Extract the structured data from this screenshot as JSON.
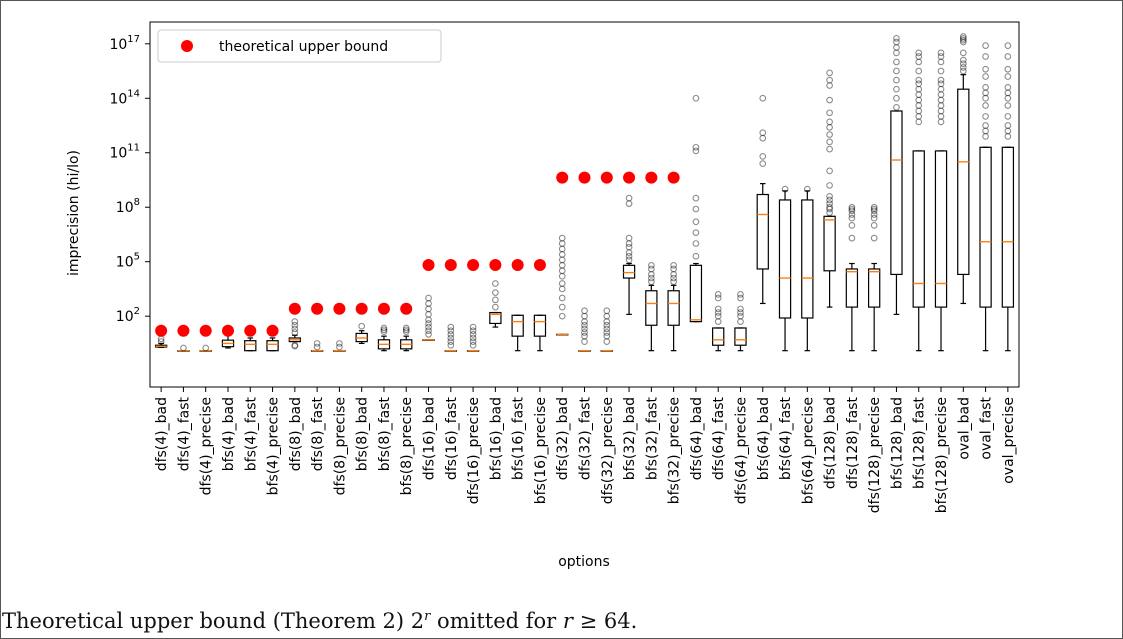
{
  "chart_data": {
    "type": "boxplot",
    "xlabel": "options",
    "ylabel": "imprecision (hi/lo)",
    "yscale": "log",
    "ylim_exp": [
      -1.9,
      18.2
    ],
    "yticks": [
      {
        "exp": 2,
        "label": "10",
        "sup": "2"
      },
      {
        "exp": 5,
        "label": "10",
        "sup": "5"
      },
      {
        "exp": 8,
        "label": "10",
        "sup": "8"
      },
      {
        "exp": 11,
        "label": "10",
        "sup": "11"
      },
      {
        "exp": 14,
        "label": "10",
        "sup": "14"
      },
      {
        "exp": 17,
        "label": "10",
        "sup": "17"
      }
    ],
    "legend": {
      "label": "theoretical upper bound",
      "position": "top-left",
      "color": "#ff0000"
    },
    "colors": {
      "median": "#ff7f0e",
      "box": "#000000",
      "bound": "#ff0000",
      "flier": "#000000"
    },
    "categories": [
      "dfs(4)_bad",
      "dfs(4)_fast",
      "dfs(4)_precise",
      "bfs(4)_bad",
      "bfs(4)_fast",
      "bfs(4)_precise",
      "dfs(8)_bad",
      "dfs(8)_fast",
      "dfs(8)_precise",
      "bfs(8)_bad",
      "bfs(8)_fast",
      "bfs(8)_precise",
      "dfs(16)_bad",
      "dfs(16)_fast",
      "dfs(16)_precise",
      "bfs(16)_bad",
      "bfs(16)_fast",
      "bfs(16)_precise",
      "dfs(32)_bad",
      "dfs(32)_fast",
      "dfs(32)_precise",
      "bfs(32)_bad",
      "bfs(32)_fast",
      "bfs(32)_precise",
      "dfs(64)_bad",
      "dfs(64)_fast",
      "dfs(64)_precise",
      "bfs(64)_bad",
      "bfs(64)_fast",
      "bfs(64)_precise",
      "dfs(128)_bad",
      "dfs(128)_fast",
      "dfs(128)_precise",
      "bfs(128)_bad",
      "bfs(128)_fast",
      "bfs(128)_precise",
      "oval_bad",
      "oval_fast",
      "oval_precise"
    ],
    "upper_bound_log10": [
      1.2,
      1.2,
      1.2,
      1.2,
      1.2,
      1.2,
      2.41,
      2.41,
      2.41,
      2.41,
      2.41,
      2.41,
      4.82,
      4.82,
      4.82,
      4.82,
      4.82,
      4.82,
      9.63,
      9.63,
      9.63,
      9.63,
      9.63,
      9.63,
      null,
      null,
      null,
      null,
      null,
      null,
      null,
      null,
      null,
      null,
      null,
      null,
      null,
      null,
      null
    ],
    "boxes_log10": [
      {
        "wl": 0.28,
        "q1": 0.3,
        "med": 0.34,
        "q3": 0.4,
        "wh": 0.5,
        "fliers": [
          0.6,
          0.75
        ]
      },
      {
        "wl": 0.1,
        "q1": 0.1,
        "med": 0.1,
        "q3": 0.1,
        "wh": 0.1,
        "fliers": [
          0.25
        ]
      },
      {
        "wl": 0.1,
        "q1": 0.1,
        "med": 0.1,
        "q3": 0.1,
        "wh": 0.1,
        "fliers": [
          0.25
        ]
      },
      {
        "wl": 0.25,
        "q1": 0.32,
        "med": 0.5,
        "q3": 0.68,
        "wh": 0.95,
        "fliers": []
      },
      {
        "wl": 0.1,
        "q1": 0.1,
        "med": 0.45,
        "q3": 0.65,
        "wh": 0.8,
        "fliers": []
      },
      {
        "wl": 0.1,
        "q1": 0.1,
        "med": 0.45,
        "q3": 0.65,
        "wh": 0.8,
        "fliers": []
      },
      {
        "wl": 0.6,
        "q1": 0.6,
        "med": 0.7,
        "q3": 0.8,
        "wh": 0.95,
        "fliers": [
          0.35,
          0.4,
          1.1,
          1.3,
          1.5,
          1.7
        ]
      },
      {
        "wl": 0.1,
        "q1": 0.1,
        "med": 0.1,
        "q3": 0.1,
        "wh": 0.1,
        "fliers": [
          0.3,
          0.5
        ]
      },
      {
        "wl": 0.1,
        "q1": 0.1,
        "med": 0.1,
        "q3": 0.1,
        "wh": 0.1,
        "fliers": [
          0.3,
          0.5
        ]
      },
      {
        "wl": 0.5,
        "q1": 0.6,
        "med": 0.8,
        "q3": 1.05,
        "wh": 1.2,
        "fliers": [
          1.45
        ]
      },
      {
        "wl": 0.1,
        "q1": 0.2,
        "med": 0.45,
        "q3": 0.7,
        "wh": 0.9,
        "fliers": [
          1.15,
          1.25,
          1.35
        ]
      },
      {
        "wl": 0.1,
        "q1": 0.2,
        "med": 0.45,
        "q3": 0.7,
        "wh": 0.9,
        "fliers": [
          1.15,
          1.25,
          1.35
        ]
      },
      {
        "wl": 0.7,
        "q1": 0.7,
        "med": 0.7,
        "q3": 0.7,
        "wh": 0.7,
        "fliers": [
          1.0,
          1.2,
          1.4,
          1.6,
          1.8,
          2.1,
          2.4,
          2.7,
          3.0
        ]
      },
      {
        "wl": 0.1,
        "q1": 0.1,
        "med": 0.1,
        "q3": 0.1,
        "wh": 0.1,
        "fliers": [
          0.4,
          0.6,
          0.8,
          1.0,
          1.2,
          1.4
        ]
      },
      {
        "wl": 0.1,
        "q1": 0.1,
        "med": 0.1,
        "q3": 0.1,
        "wh": 0.1,
        "fliers": [
          0.4,
          0.6,
          0.8,
          1.0,
          1.2,
          1.4
        ]
      },
      {
        "wl": 1.4,
        "q1": 1.6,
        "med": 2.1,
        "q3": 2.2,
        "wh": 2.2,
        "fliers": [
          2.5,
          2.9,
          3.3,
          3.8
        ]
      },
      {
        "wl": 0.1,
        "q1": 0.9,
        "med": 1.7,
        "q3": 2.05,
        "wh": 2.05,
        "fliers": []
      },
      {
        "wl": 0.1,
        "q1": 0.9,
        "med": 1.7,
        "q3": 2.05,
        "wh": 2.05,
        "fliers": []
      },
      {
        "wl": 1.0,
        "q1": 1.0,
        "med": 1.0,
        "q3": 1.0,
        "wh": 1.0,
        "fliers": [
          2.0,
          2.5,
          3.0,
          3.5,
          3.8,
          4.2,
          4.5,
          4.8,
          5.1,
          5.4,
          5.7,
          6.0,
          6.3
        ]
      },
      {
        "wl": 0.1,
        "q1": 0.1,
        "med": 0.1,
        "q3": 0.1,
        "wh": 0.1,
        "fliers": [
          0.6,
          0.9,
          1.1,
          1.3,
          1.5,
          1.7,
          2.0,
          2.3
        ]
      },
      {
        "wl": 0.1,
        "q1": 0.1,
        "med": 0.1,
        "q3": 0.1,
        "wh": 0.1,
        "fliers": [
          0.6,
          0.9,
          1.1,
          1.3,
          1.5,
          1.7,
          2.0,
          2.3
        ]
      },
      {
        "wl": 2.1,
        "q1": 4.1,
        "med": 4.4,
        "q3": 4.8,
        "wh": 4.9,
        "fliers": [
          5.1,
          5.3,
          5.5,
          5.8,
          6.0,
          6.3,
          8.2,
          8.5
        ]
      },
      {
        "wl": 0.1,
        "q1": 1.5,
        "med": 2.7,
        "q3": 3.4,
        "wh": 3.7,
        "fliers": [
          3.9,
          4.1,
          4.3,
          4.6,
          4.8
        ]
      },
      {
        "wl": 0.1,
        "q1": 1.5,
        "med": 2.7,
        "q3": 3.4,
        "wh": 3.7,
        "fliers": [
          3.9,
          4.1,
          4.3,
          4.6,
          4.8
        ]
      },
      {
        "wl": 1.7,
        "q1": 1.7,
        "med": 1.8,
        "q3": 4.8,
        "wh": 4.9,
        "fliers": [
          5.3,
          6.0,
          6.6,
          7.2,
          7.9,
          8.5,
          11.1,
          11.3,
          14.0
        ]
      },
      {
        "wl": 0.1,
        "q1": 0.4,
        "med": 0.7,
        "q3": 1.35,
        "wh": 1.35,
        "fliers": [
          1.7,
          2.0,
          2.2,
          2.4,
          3.0,
          3.2
        ]
      },
      {
        "wl": 0.1,
        "q1": 0.4,
        "med": 0.7,
        "q3": 1.35,
        "wh": 1.35,
        "fliers": [
          1.7,
          2.0,
          2.2,
          2.4,
          3.0,
          3.2
        ]
      },
      {
        "wl": 2.7,
        "q1": 4.6,
        "med": 7.6,
        "q3": 8.7,
        "wh": 9.3,
        "fliers": [
          10.4,
          10.8,
          11.8,
          12.1,
          14.0
        ]
      },
      {
        "wl": 0.1,
        "q1": 1.9,
        "med": 4.1,
        "q3": 8.4,
        "wh": 8.9,
        "fliers": [
          9.0
        ]
      },
      {
        "wl": 0.1,
        "q1": 1.9,
        "med": 4.1,
        "q3": 8.4,
        "wh": 8.9,
        "fliers": [
          9.0
        ]
      },
      {
        "wl": 2.5,
        "q1": 4.5,
        "med": 7.3,
        "q3": 7.5,
        "wh": 7.5,
        "fliers": [
          7.7,
          7.9,
          8.0,
          8.2,
          8.4,
          8.6,
          9.2,
          10.0,
          11.2,
          11.6,
          12.0,
          12.4,
          12.7,
          13.2,
          13.9,
          14.7,
          15.0,
          15.4
        ]
      },
      {
        "wl": 0.1,
        "q1": 2.5,
        "med": 4.45,
        "q3": 4.6,
        "wh": 4.9,
        "fliers": [
          6.3,
          7.0,
          7.4,
          7.6,
          7.8,
          7.9,
          8.0
        ]
      },
      {
        "wl": 0.1,
        "q1": 2.5,
        "med": 4.45,
        "q3": 4.6,
        "wh": 4.9,
        "fliers": [
          6.3,
          7.0,
          7.4,
          7.6,
          7.8,
          7.9,
          8.0
        ]
      },
      {
        "wl": 2.1,
        "q1": 4.3,
        "med": 10.6,
        "q3": 13.3,
        "wh": 13.3,
        "fliers": [
          13.5,
          14.0,
          14.5,
          15.0,
          15.5,
          16.0,
          16.5,
          16.8,
          17.1,
          17.3
        ]
      },
      {
        "wl": 0.1,
        "q1": 2.5,
        "med": 3.8,
        "q3": 11.1,
        "wh": 11.1,
        "fliers": [
          12.7,
          13.0,
          13.3,
          13.6,
          13.9,
          14.2,
          14.5,
          14.8,
          15.0,
          15.5,
          16.0,
          16.3,
          16.5
        ]
      },
      {
        "wl": 0.1,
        "q1": 2.5,
        "med": 3.8,
        "q3": 11.1,
        "wh": 11.1,
        "fliers": [
          12.7,
          13.0,
          13.3,
          13.6,
          13.9,
          14.2,
          14.5,
          14.8,
          15.0,
          15.5,
          16.0,
          16.3,
          16.5
        ]
      },
      {
        "wl": 2.7,
        "q1": 4.3,
        "med": 10.5,
        "q3": 14.5,
        "wh": 15.3,
        "fliers": [
          15.5,
          15.7,
          15.9,
          16.1,
          16.5,
          17.1,
          17.2,
          17.3,
          17.4
        ]
      },
      {
        "wl": 0.1,
        "q1": 2.5,
        "med": 6.1,
        "q3": 11.3,
        "wh": 11.3,
        "fliers": [
          11.9,
          12.2,
          12.5,
          13.0,
          13.6,
          14.0,
          14.3,
          14.6,
          15.2,
          15.6,
          16.3,
          16.9
        ]
      },
      {
        "wl": 0.1,
        "q1": 2.5,
        "med": 6.1,
        "q3": 11.3,
        "wh": 11.3,
        "fliers": [
          11.9,
          12.2,
          12.5,
          13.0,
          13.6,
          14.0,
          14.3,
          14.6,
          15.2,
          15.6,
          16.3,
          16.9
        ]
      }
    ]
  },
  "caption": {
    "prefix": "Theoretical upper bound (Theorem 2) 2",
    "sup": "r",
    "middle": " omitted for ",
    "var": "r",
    "suffix": " ≥ 64."
  }
}
